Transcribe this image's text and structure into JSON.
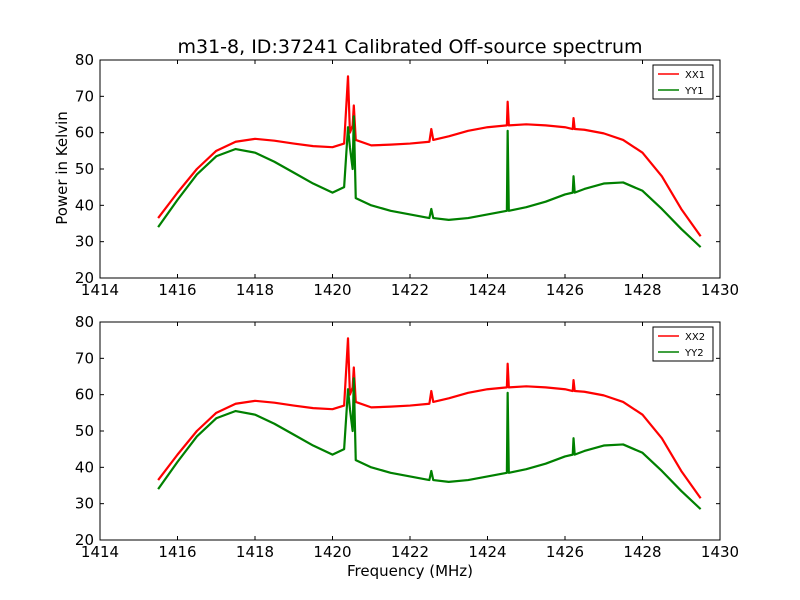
{
  "figure": {
    "title": "m31-8, ID:37241 Calibrated Off-source spectrum",
    "xlabel": "Frequency (MHz)",
    "ylabel": "Power in Kelvin"
  },
  "chart_data": [
    {
      "type": "line",
      "xlim": [
        1414,
        1430
      ],
      "ylim": [
        20,
        80
      ],
      "xticks": [
        1414,
        1416,
        1418,
        1420,
        1422,
        1424,
        1426,
        1428,
        1430
      ],
      "yticks": [
        20,
        30,
        40,
        50,
        60,
        70,
        80
      ],
      "grid": false,
      "legend": "top-right",
      "series": [
        {
          "name": "XX1",
          "color": "#ff0000",
          "points": [
            [
              1415.5,
              36.5
            ],
            [
              1416.0,
              43.5
            ],
            [
              1416.5,
              50.0
            ],
            [
              1417.0,
              55.0
            ],
            [
              1417.5,
              57.5
            ],
            [
              1418.0,
              58.3
            ],
            [
              1418.5,
              57.8
            ],
            [
              1419.0,
              57.0
            ],
            [
              1419.5,
              56.3
            ],
            [
              1420.0,
              56.0
            ],
            [
              1420.3,
              57.0
            ],
            [
              1420.4,
              75.5
            ],
            [
              1420.45,
              60.0
            ],
            [
              1420.52,
              62.0
            ],
            [
              1420.55,
              67.5
            ],
            [
              1420.6,
              58.0
            ],
            [
              1421.0,
              56.5
            ],
            [
              1421.5,
              56.7
            ],
            [
              1422.0,
              57.0
            ],
            [
              1422.5,
              57.5
            ],
            [
              1422.55,
              61.0
            ],
            [
              1422.6,
              58.0
            ],
            [
              1423.0,
              59.0
            ],
            [
              1423.5,
              60.5
            ],
            [
              1424.0,
              61.5
            ],
            [
              1424.5,
              62.0
            ],
            [
              1424.52,
              68.5
            ],
            [
              1424.55,
              62.0
            ],
            [
              1425.0,
              62.3
            ],
            [
              1425.5,
              62.0
            ],
            [
              1426.0,
              61.5
            ],
            [
              1426.2,
              61.0
            ],
            [
              1426.22,
              64.0
            ],
            [
              1426.25,
              61.0
            ],
            [
              1426.5,
              60.8
            ],
            [
              1427.0,
              59.8
            ],
            [
              1427.5,
              58.0
            ],
            [
              1428.0,
              54.5
            ],
            [
              1428.5,
              48.0
            ],
            [
              1429.0,
              39.0
            ],
            [
              1429.5,
              31.5
            ]
          ]
        },
        {
          "name": "YY1",
          "color": "#008000",
          "points": [
            [
              1415.5,
              34.0
            ],
            [
              1416.0,
              41.5
            ],
            [
              1416.5,
              48.5
            ],
            [
              1417.0,
              53.5
            ],
            [
              1417.5,
              55.5
            ],
            [
              1418.0,
              54.5
            ],
            [
              1418.5,
              52.0
            ],
            [
              1419.0,
              49.0
            ],
            [
              1419.5,
              46.0
            ],
            [
              1420.0,
              43.5
            ],
            [
              1420.3,
              45.0
            ],
            [
              1420.4,
              61.5
            ],
            [
              1420.45,
              56.0
            ],
            [
              1420.52,
              50.0
            ],
            [
              1420.55,
              64.5
            ],
            [
              1420.6,
              42.0
            ],
            [
              1421.0,
              40.0
            ],
            [
              1421.5,
              38.5
            ],
            [
              1422.0,
              37.5
            ],
            [
              1422.5,
              36.5
            ],
            [
              1422.55,
              39.0
            ],
            [
              1422.6,
              36.5
            ],
            [
              1423.0,
              36.0
            ],
            [
              1423.5,
              36.5
            ],
            [
              1424.0,
              37.5
            ],
            [
              1424.5,
              38.5
            ],
            [
              1424.52,
              60.5
            ],
            [
              1424.55,
              38.5
            ],
            [
              1425.0,
              39.5
            ],
            [
              1425.5,
              41.0
            ],
            [
              1426.0,
              43.0
            ],
            [
              1426.2,
              43.5
            ],
            [
              1426.22,
              48.0
            ],
            [
              1426.25,
              43.5
            ],
            [
              1426.5,
              44.5
            ],
            [
              1427.0,
              46.0
            ],
            [
              1427.5,
              46.3
            ],
            [
              1428.0,
              44.0
            ],
            [
              1428.5,
              39.0
            ],
            [
              1429.0,
              33.5
            ],
            [
              1429.5,
              28.5
            ]
          ]
        }
      ]
    },
    {
      "type": "line",
      "xlim": [
        1414,
        1430
      ],
      "ylim": [
        20,
        80
      ],
      "xticks": [
        1414,
        1416,
        1418,
        1420,
        1422,
        1424,
        1426,
        1428,
        1430
      ],
      "yticks": [
        20,
        30,
        40,
        50,
        60,
        70,
        80
      ],
      "grid": false,
      "legend": "top-right",
      "series": [
        {
          "name": "XX2",
          "color": "#ff0000",
          "points": [
            [
              1415.5,
              36.5
            ],
            [
              1416.0,
              43.5
            ],
            [
              1416.5,
              50.0
            ],
            [
              1417.0,
              55.0
            ],
            [
              1417.5,
              57.5
            ],
            [
              1418.0,
              58.3
            ],
            [
              1418.5,
              57.8
            ],
            [
              1419.0,
              57.0
            ],
            [
              1419.5,
              56.3
            ],
            [
              1420.0,
              56.0
            ],
            [
              1420.3,
              57.0
            ],
            [
              1420.4,
              75.5
            ],
            [
              1420.45,
              60.0
            ],
            [
              1420.52,
              62.0
            ],
            [
              1420.55,
              67.5
            ],
            [
              1420.6,
              58.0
            ],
            [
              1421.0,
              56.5
            ],
            [
              1421.5,
              56.7
            ],
            [
              1422.0,
              57.0
            ],
            [
              1422.5,
              57.5
            ],
            [
              1422.55,
              61.0
            ],
            [
              1422.6,
              58.0
            ],
            [
              1423.0,
              59.0
            ],
            [
              1423.5,
              60.5
            ],
            [
              1424.0,
              61.5
            ],
            [
              1424.5,
              62.0
            ],
            [
              1424.52,
              68.5
            ],
            [
              1424.55,
              62.0
            ],
            [
              1425.0,
              62.3
            ],
            [
              1425.5,
              62.0
            ],
            [
              1426.0,
              61.5
            ],
            [
              1426.2,
              61.0
            ],
            [
              1426.22,
              64.0
            ],
            [
              1426.25,
              61.0
            ],
            [
              1426.5,
              60.8
            ],
            [
              1427.0,
              59.8
            ],
            [
              1427.5,
              58.0
            ],
            [
              1428.0,
              54.5
            ],
            [
              1428.5,
              48.0
            ],
            [
              1429.0,
              39.0
            ],
            [
              1429.5,
              31.5
            ]
          ]
        },
        {
          "name": "YY2",
          "color": "#008000",
          "points": [
            [
              1415.5,
              34.0
            ],
            [
              1416.0,
              41.5
            ],
            [
              1416.5,
              48.5
            ],
            [
              1417.0,
              53.5
            ],
            [
              1417.5,
              55.5
            ],
            [
              1418.0,
              54.5
            ],
            [
              1418.5,
              52.0
            ],
            [
              1419.0,
              49.0
            ],
            [
              1419.5,
              46.0
            ],
            [
              1420.0,
              43.5
            ],
            [
              1420.3,
              45.0
            ],
            [
              1420.4,
              61.5
            ],
            [
              1420.45,
              56.0
            ],
            [
              1420.52,
              50.0
            ],
            [
              1420.55,
              64.5
            ],
            [
              1420.6,
              42.0
            ],
            [
              1421.0,
              40.0
            ],
            [
              1421.5,
              38.5
            ],
            [
              1422.0,
              37.5
            ],
            [
              1422.5,
              36.5
            ],
            [
              1422.55,
              39.0
            ],
            [
              1422.6,
              36.5
            ],
            [
              1423.0,
              36.0
            ],
            [
              1423.5,
              36.5
            ],
            [
              1424.0,
              37.5
            ],
            [
              1424.5,
              38.5
            ],
            [
              1424.52,
              60.5
            ],
            [
              1424.55,
              38.5
            ],
            [
              1425.0,
              39.5
            ],
            [
              1425.5,
              41.0
            ],
            [
              1426.0,
              43.0
            ],
            [
              1426.2,
              43.5
            ],
            [
              1426.22,
              48.0
            ],
            [
              1426.25,
              43.5
            ],
            [
              1426.5,
              44.5
            ],
            [
              1427.0,
              46.0
            ],
            [
              1427.5,
              46.3
            ],
            [
              1428.0,
              44.0
            ],
            [
              1428.5,
              39.0
            ],
            [
              1429.0,
              33.5
            ],
            [
              1429.5,
              28.5
            ]
          ]
        }
      ]
    }
  ]
}
